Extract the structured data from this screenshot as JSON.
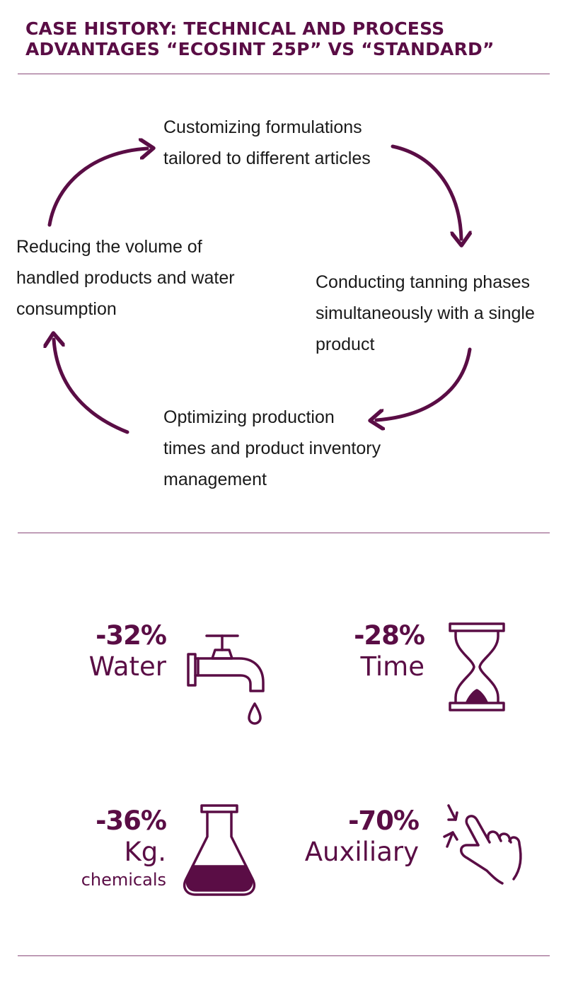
{
  "title": {
    "line1": "CASE HISTORY: TECHNICAL AND PROCESS",
    "line2": "ADVANTAGES “ECOSINT 25P” VS “STANDARD”"
  },
  "cycle": {
    "top": [
      "Customizing formulations",
      "tailored to different articles"
    ],
    "right": [
      "Conducting tanning phases",
      "simultaneously with a single",
      "product"
    ],
    "bottom": [
      "Optimizing production",
      "times and product inventory",
      "management"
    ],
    "left": [
      "Reducing the volume of",
      "handled products and water",
      "consumption"
    ]
  },
  "stats": {
    "water": {
      "percent": "-32%",
      "label": "Water",
      "icon": "faucet-icon"
    },
    "time": {
      "percent": "-28%",
      "label": "Time",
      "icon": "hourglass-icon"
    },
    "chemicals": {
      "percent": "-36%",
      "label": "Kg.",
      "sublabel": "chemicals",
      "icon": "flask-icon"
    },
    "auxiliary": {
      "percent": "-70%",
      "label": "Auxiliary",
      "icon": "pinch-hand-icon"
    }
  },
  "colors": {
    "accent": "#5a0d45",
    "rule": "#8a4a7a",
    "text": "#1a1a1a"
  }
}
